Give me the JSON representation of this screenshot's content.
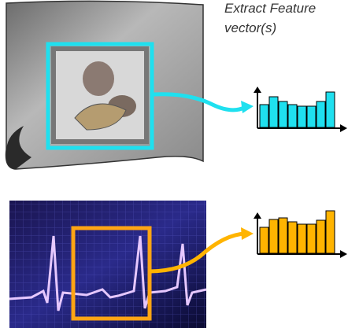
{
  "label": {
    "line1": "Extract Feature",
    "line2": "vector(s)"
  },
  "charts": [
    {
      "type": "bar",
      "values": [
        30,
        40,
        34,
        30,
        28,
        28,
        34,
        46
      ],
      "color": "#1fe0ef",
      "ylim": [
        0,
        60
      ]
    },
    {
      "type": "bar",
      "values": [
        34,
        44,
        46,
        41,
        38,
        38,
        43,
        55
      ],
      "color": "#ffb400",
      "ylim": [
        0,
        60
      ]
    }
  ]
}
